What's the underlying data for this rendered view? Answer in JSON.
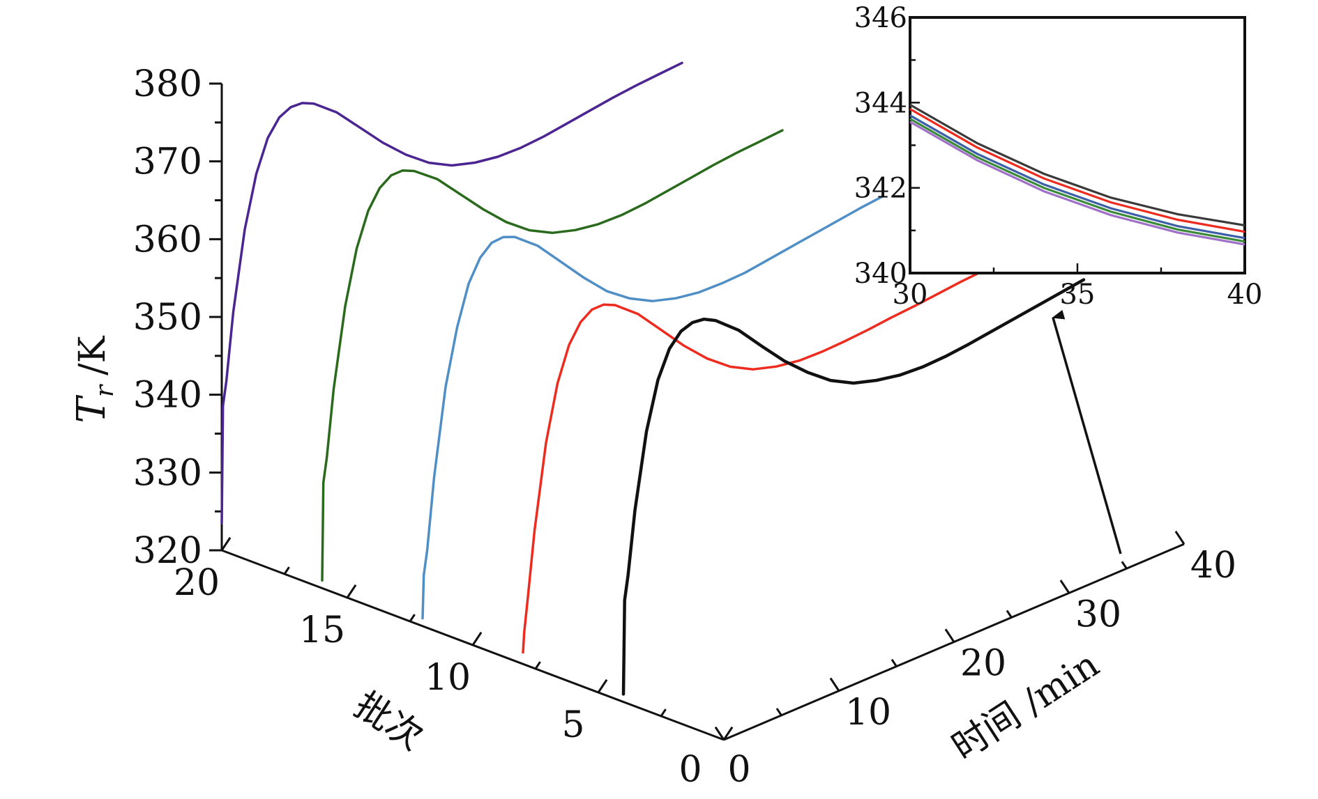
{
  "chart_data": [
    {
      "type": "line",
      "projection": "3d-waterfall",
      "title": "",
      "ylabel": {
        "symbol": "T",
        "subscript": "r",
        "unit": "/K"
      },
      "xlabel": "时间 /min",
      "zlabel": "批次",
      "y_ticks": [
        320,
        330,
        340,
        350,
        360,
        370,
        380
      ],
      "x_ticks": [
        10,
        20,
        30,
        40
      ],
      "z_ticks": [
        20,
        15,
        10,
        5
      ],
      "origin_labels": [
        "0",
        "0"
      ],
      "ylim": [
        320,
        380
      ],
      "xlim": [
        0,
        40
      ],
      "zlim": [
        0,
        20
      ],
      "series": [
        {
          "batch": 20,
          "color": "#4b2591",
          "x": [
            0,
            0.1,
            0.4,
            1,
            2,
            3,
            4,
            5,
            6,
            7,
            8,
            10,
            12,
            14,
            16,
            18,
            20,
            22,
            24,
            26,
            28,
            30,
            32,
            34,
            36,
            38,
            40
          ],
          "y": [
            323.5,
            338.5,
            341.5,
            350,
            360,
            366.5,
            370.5,
            372.5,
            373.2,
            373.1,
            372.4,
            370,
            366.8,
            363.6,
            360.8,
            358.5,
            356.9,
            356,
            355.5,
            355.4,
            355.6,
            356,
            356.4,
            356.8,
            357.1,
            357.3,
            357.5
          ]
        },
        {
          "batch": 16,
          "color": "#2a6a1c",
          "x": [
            0,
            0.1,
            0.4,
            1,
            2,
            3,
            4,
            5,
            6,
            7,
            8,
            10,
            12,
            14,
            16,
            18,
            20,
            22,
            24,
            26,
            28,
            30,
            32,
            34,
            36,
            38,
            40
          ],
          "y": [
            321,
            333.5,
            336.5,
            345,
            355,
            361.8,
            366,
            368.3,
            369.3,
            369.3,
            368.6,
            366.3,
            363.1,
            359.9,
            357,
            354.7,
            353.1,
            352.2,
            351.7,
            351.6,
            351.8,
            352.2,
            352.6,
            353,
            353.3,
            353.5,
            353.7
          ]
        },
        {
          "batch": 12,
          "color": "#4f8fc6",
          "x": [
            0,
            0.1,
            0.4,
            1,
            2,
            3,
            4,
            5,
            6,
            7,
            8,
            10,
            12,
            14,
            16,
            18,
            20,
            22,
            24,
            26,
            28,
            30,
            32,
            34,
            36,
            38,
            40
          ],
          "y": [
            321,
            326.5,
            329.5,
            338.5,
            349.5,
            356.5,
            361.5,
            364.2,
            365.5,
            365.6,
            365,
            362.6,
            359.3,
            356,
            353,
            350.8,
            349.2,
            348.3,
            347.8,
            347.7,
            347.8,
            348.2,
            348.6,
            349,
            349.4,
            349.8,
            350.1
          ]
        },
        {
          "batch": 8,
          "color": "#ee2b1f",
          "x": [
            0,
            0.1,
            0.4,
            1,
            2,
            3,
            4,
            5,
            6,
            7,
            8,
            10,
            12,
            14,
            16,
            18,
            20,
            22,
            24,
            26,
            28,
            30,
            32,
            34,
            36,
            38,
            40
          ],
          "y": [
            321.5,
            324,
            328,
            336.5,
            347.2,
            354.2,
            358.5,
            360.8,
            361.8,
            361.8,
            361.1,
            358.7,
            355.4,
            352.1,
            349.2,
            346.9,
            345.3,
            344.4,
            343.9,
            343.8,
            343.9,
            344.1,
            344.4,
            344.6,
            344.9,
            345.2,
            345.4
          ]
        },
        {
          "batch": 4,
          "color": "#111111",
          "x": [
            0,
            0.1,
            0.4,
            1,
            2,
            3,
            4,
            5,
            6,
            7,
            8,
            10,
            12,
            14,
            16,
            18,
            20,
            22,
            24,
            26,
            28,
            30,
            32,
            34,
            36,
            38,
            40
          ],
          "y": [
            321,
            333,
            336,
            344,
            353.5,
            359.5,
            362.9,
            364.5,
            365,
            364.8,
            364,
            361.5,
            358.2,
            355,
            352.3,
            350,
            348.4,
            347.5,
            346.9,
            346.7,
            346.8,
            347.1,
            347.5,
            347.9,
            348.3,
            348.7,
            349.1
          ]
        }
      ]
    },
    {
      "type": "line",
      "role": "inset",
      "title": "",
      "x_ticks": [
        30,
        35,
        40
      ],
      "y_ticks": [
        340,
        342,
        344,
        346
      ],
      "xlim": [
        30,
        40
      ],
      "ylim": [
        340,
        346
      ],
      "series": [
        {
          "color": "#3a3a3a",
          "x": [
            30,
            32,
            34,
            36,
            38,
            40
          ],
          "y": [
            343.95,
            343.05,
            342.33,
            341.77,
            341.38,
            341.12
          ]
        },
        {
          "color": "#ee2b1f",
          "x": [
            30,
            32,
            34,
            36,
            38,
            40
          ],
          "y": [
            343.85,
            342.95,
            342.22,
            341.66,
            341.25,
            340.97
          ]
        },
        {
          "color": "#3c5fa8",
          "x": [
            30,
            32,
            34,
            36,
            38,
            40
          ],
          "y": [
            343.7,
            342.8,
            342.08,
            341.52,
            341.1,
            340.82
          ]
        },
        {
          "color": "#3a8a3a",
          "x": [
            30,
            32,
            34,
            36,
            38,
            40
          ],
          "y": [
            343.62,
            342.72,
            342.0,
            341.44,
            341.02,
            340.74
          ]
        },
        {
          "color": "#a070c8",
          "x": [
            30,
            32,
            34,
            36,
            38,
            40
          ],
          "y": [
            343.55,
            342.65,
            341.92,
            341.36,
            340.95,
            340.67
          ]
        }
      ]
    }
  ]
}
